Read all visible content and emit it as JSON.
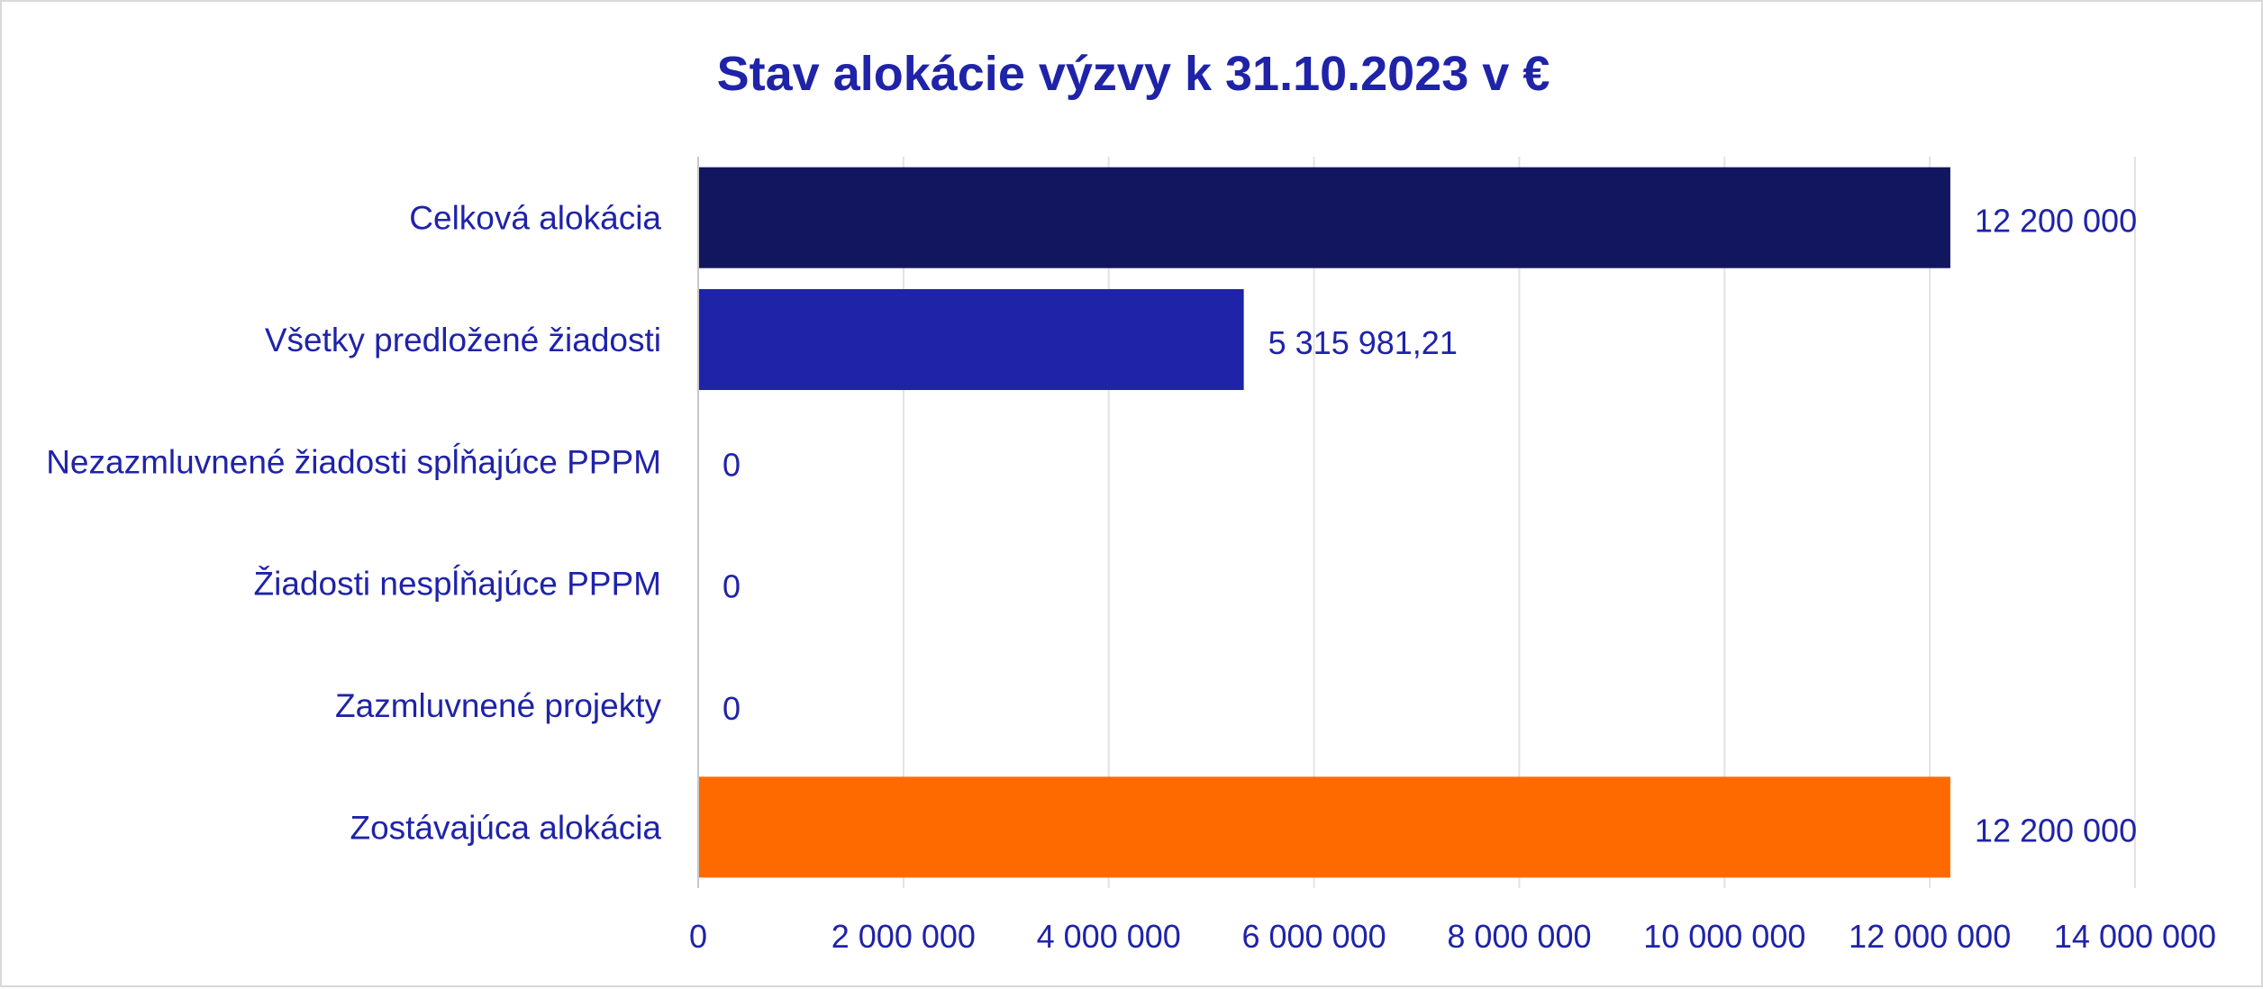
{
  "chart_data": {
    "type": "bar",
    "orientation": "horizontal",
    "title": "Stav alokácie výzvy k 31.10.2023 v €",
    "xlabel": "",
    "ylabel": "",
    "categories": [
      "Celková alokácia",
      "Všetky predložené žiadosti",
      "Nezazmluvnené žiadosti spĺňajúce PPPM",
      "Žiadosti nespĺňajúce PPPM",
      "Zazmluvnené projekty",
      "Zostávajúca alokácia"
    ],
    "values": [
      12200000,
      5315981.21,
      0,
      0,
      0,
      12200000
    ],
    "value_labels": [
      "12 200 000",
      "5 315 981,21",
      "0",
      "0",
      "0",
      "12 200 000"
    ],
    "colors": [
      "#12165f",
      "#1f23a8",
      "#1f23a8",
      "#1f23a8",
      "#1f23a8",
      "#ff6a00"
    ],
    "xlim": [
      0,
      14000000
    ],
    "ticks": [
      0,
      2000000,
      4000000,
      6000000,
      8000000,
      10000000,
      12000000,
      14000000
    ],
    "tick_labels": [
      "0",
      "2 000 000",
      "4 000 000",
      "6 000 000",
      "8 000 000",
      "10 000 000",
      "12 000 000",
      "14 000 000"
    ],
    "grid": true,
    "legend": "none",
    "text_color": "#1f23a8",
    "grid_color": "#e3e3e3",
    "axis_color": "#c8c8c8"
  }
}
